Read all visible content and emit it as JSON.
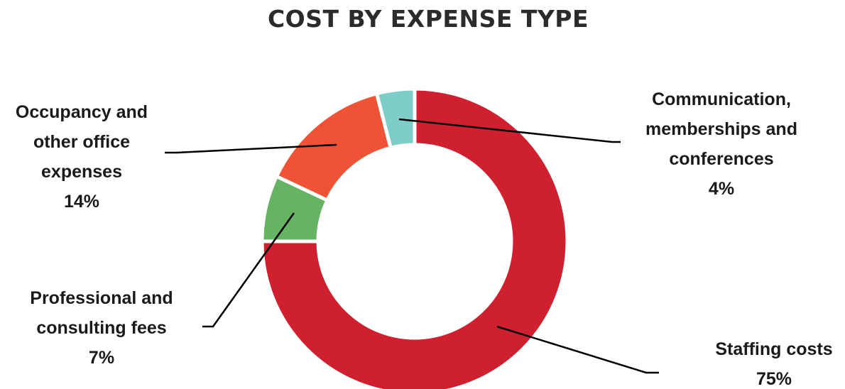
{
  "chart_data": {
    "type": "pie",
    "donut": true,
    "title": "COST BY EXPENSE TYPE",
    "series": [
      {
        "name": "Staffing costs",
        "label_lines": [
          "Staffing costs"
        ],
        "value": 75,
        "value_label": "75%",
        "color": "#cf2030"
      },
      {
        "name": "Professional and consulting fees",
        "label_lines": [
          "Professional and",
          "consulting fees"
        ],
        "value": 7,
        "value_label": "7%",
        "color": "#66b364"
      },
      {
        "name": "Occupancy and other office expenses",
        "label_lines": [
          "Occupancy and",
          "other office",
          "expenses"
        ],
        "value": 14,
        "value_label": "14%",
        "color": "#ee5336"
      },
      {
        "name": "Communication, memberships and conferences",
        "label_lines": [
          "Communication,",
          "memberships and",
          "conferences"
        ],
        "value": 4,
        "value_label": "4%",
        "color": "#7ecdc8"
      }
    ]
  }
}
